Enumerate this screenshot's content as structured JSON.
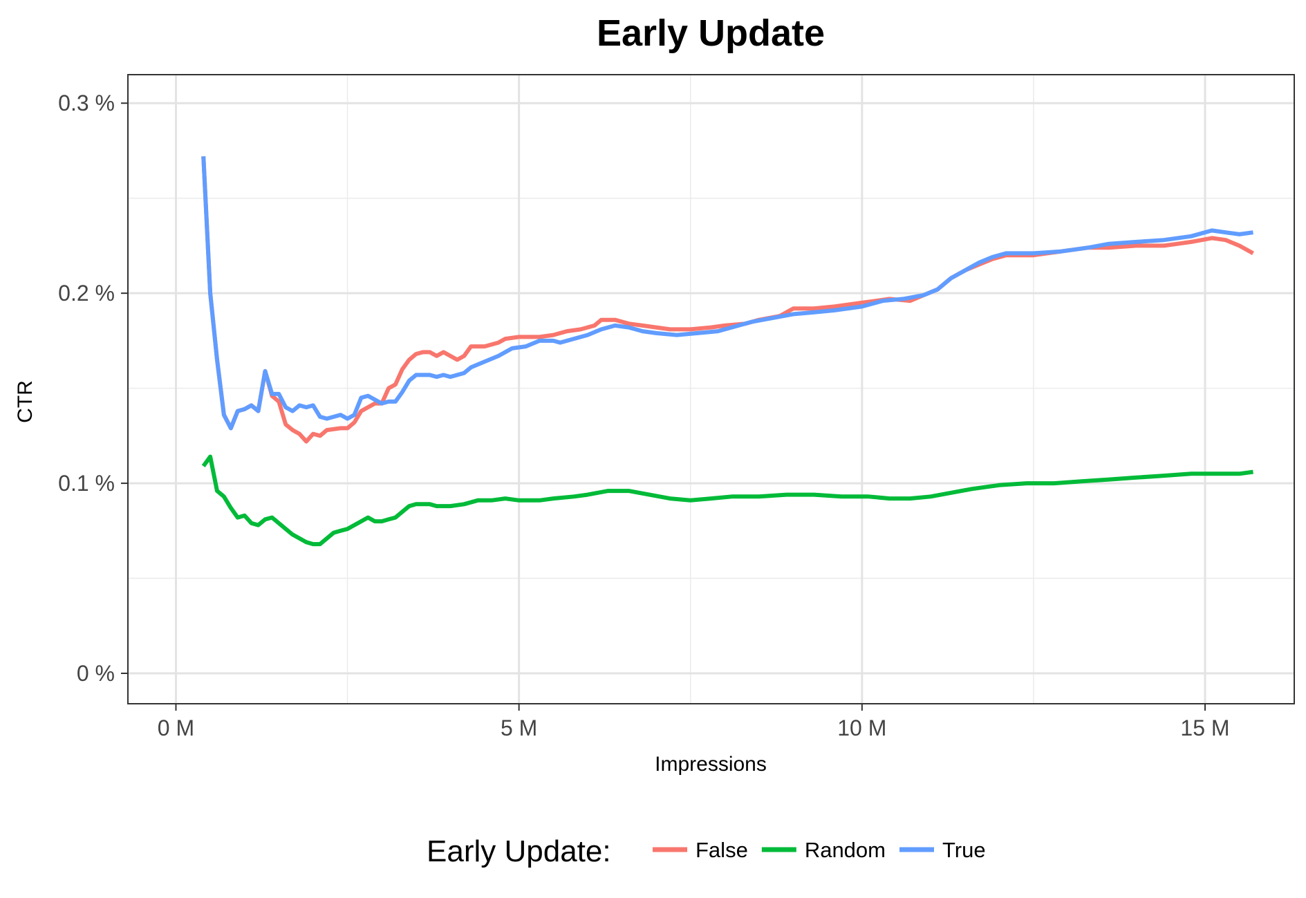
{
  "chart_data": {
    "type": "line",
    "title": "Early Update",
    "xlabel": "Impressions",
    "ylabel": "CTR",
    "xlim": [
      -0.7,
      16.3
    ],
    "ylim": [
      -0.016,
      0.315
    ],
    "x_ticks": [
      0,
      5,
      10,
      15
    ],
    "x_tick_labels": [
      "0 M",
      "5 M",
      "10 M",
      "15 M"
    ],
    "y_ticks": [
      0,
      0.1,
      0.2,
      0.3
    ],
    "y_tick_labels": [
      "0 %",
      "0.1 %",
      "0.2 %",
      "0.3 %"
    ],
    "grid": true,
    "legend": {
      "title": "Early Update:",
      "placement": "bottom"
    },
    "series": [
      {
        "name": "False",
        "color": "#F8766D",
        "points": [
          [
            0.4,
            0.272
          ],
          [
            0.5,
            0.2
          ],
          [
            0.6,
            0.165
          ],
          [
            0.7,
            0.136
          ],
          [
            0.8,
            0.129
          ],
          [
            0.9,
            0.138
          ],
          [
            1.0,
            0.139
          ],
          [
            1.1,
            0.141
          ],
          [
            1.2,
            0.138
          ],
          [
            1.3,
            0.159
          ],
          [
            1.4,
            0.146
          ],
          [
            1.5,
            0.143
          ],
          [
            1.6,
            0.131
          ],
          [
            1.7,
            0.128
          ],
          [
            1.8,
            0.126
          ],
          [
            1.9,
            0.122
          ],
          [
            2.0,
            0.126
          ],
          [
            2.1,
            0.125
          ],
          [
            2.2,
            0.128
          ],
          [
            2.4,
            0.129
          ],
          [
            2.5,
            0.129
          ],
          [
            2.6,
            0.132
          ],
          [
            2.7,
            0.138
          ],
          [
            2.8,
            0.14
          ],
          [
            2.9,
            0.142
          ],
          [
            3.0,
            0.142
          ],
          [
            3.1,
            0.15
          ],
          [
            3.2,
            0.152
          ],
          [
            3.3,
            0.16
          ],
          [
            3.4,
            0.165
          ],
          [
            3.5,
            0.168
          ],
          [
            3.6,
            0.169
          ],
          [
            3.7,
            0.169
          ],
          [
            3.8,
            0.167
          ],
          [
            3.9,
            0.169
          ],
          [
            4.0,
            0.167
          ],
          [
            4.1,
            0.165
          ],
          [
            4.2,
            0.167
          ],
          [
            4.3,
            0.172
          ],
          [
            4.5,
            0.172
          ],
          [
            4.7,
            0.174
          ],
          [
            4.8,
            0.176
          ],
          [
            5.0,
            0.177
          ],
          [
            5.3,
            0.177
          ],
          [
            5.5,
            0.178
          ],
          [
            5.7,
            0.18
          ],
          [
            5.9,
            0.181
          ],
          [
            6.1,
            0.183
          ],
          [
            6.2,
            0.186
          ],
          [
            6.4,
            0.186
          ],
          [
            6.6,
            0.184
          ],
          [
            6.8,
            0.183
          ],
          [
            7.0,
            0.182
          ],
          [
            7.2,
            0.181
          ],
          [
            7.5,
            0.181
          ],
          [
            7.8,
            0.182
          ],
          [
            8.0,
            0.183
          ],
          [
            8.3,
            0.184
          ],
          [
            8.5,
            0.186
          ],
          [
            8.8,
            0.188
          ],
          [
            9.0,
            0.192
          ],
          [
            9.3,
            0.192
          ],
          [
            9.6,
            0.193
          ],
          [
            10.0,
            0.195
          ],
          [
            10.2,
            0.196
          ],
          [
            10.4,
            0.197
          ],
          [
            10.7,
            0.196
          ],
          [
            10.9,
            0.199
          ],
          [
            11.1,
            0.202
          ],
          [
            11.3,
            0.208
          ],
          [
            11.5,
            0.212
          ],
          [
            11.7,
            0.215
          ],
          [
            11.9,
            0.218
          ],
          [
            12.1,
            0.22
          ],
          [
            12.5,
            0.22
          ],
          [
            12.9,
            0.222
          ],
          [
            13.3,
            0.224
          ],
          [
            13.6,
            0.224
          ],
          [
            14.0,
            0.225
          ],
          [
            14.4,
            0.225
          ],
          [
            14.6,
            0.226
          ],
          [
            14.8,
            0.227
          ],
          [
            15.1,
            0.229
          ],
          [
            15.3,
            0.228
          ],
          [
            15.5,
            0.225
          ],
          [
            15.7,
            0.221
          ]
        ]
      },
      {
        "name": "Random",
        "color": "#00BA38",
        "points": [
          [
            0.4,
            0.109
          ],
          [
            0.5,
            0.114
          ],
          [
            0.6,
            0.096
          ],
          [
            0.7,
            0.093
          ],
          [
            0.8,
            0.087
          ],
          [
            0.9,
            0.082
          ],
          [
            1.0,
            0.083
          ],
          [
            1.1,
            0.079
          ],
          [
            1.2,
            0.078
          ],
          [
            1.3,
            0.081
          ],
          [
            1.4,
            0.082
          ],
          [
            1.5,
            0.079
          ],
          [
            1.6,
            0.076
          ],
          [
            1.7,
            0.073
          ],
          [
            1.8,
            0.071
          ],
          [
            1.9,
            0.069
          ],
          [
            2.0,
            0.068
          ],
          [
            2.1,
            0.068
          ],
          [
            2.2,
            0.071
          ],
          [
            2.3,
            0.074
          ],
          [
            2.4,
            0.075
          ],
          [
            2.5,
            0.076
          ],
          [
            2.6,
            0.078
          ],
          [
            2.7,
            0.08
          ],
          [
            2.8,
            0.082
          ],
          [
            2.9,
            0.08
          ],
          [
            3.0,
            0.08
          ],
          [
            3.1,
            0.081
          ],
          [
            3.2,
            0.082
          ],
          [
            3.3,
            0.085
          ],
          [
            3.4,
            0.088
          ],
          [
            3.5,
            0.089
          ],
          [
            3.6,
            0.089
          ],
          [
            3.7,
            0.089
          ],
          [
            3.8,
            0.088
          ],
          [
            4.0,
            0.088
          ],
          [
            4.2,
            0.089
          ],
          [
            4.4,
            0.091
          ],
          [
            4.6,
            0.091
          ],
          [
            4.8,
            0.092
          ],
          [
            5.0,
            0.091
          ],
          [
            5.3,
            0.091
          ],
          [
            5.5,
            0.092
          ],
          [
            5.8,
            0.093
          ],
          [
            6.0,
            0.094
          ],
          [
            6.3,
            0.096
          ],
          [
            6.6,
            0.096
          ],
          [
            6.9,
            0.094
          ],
          [
            7.2,
            0.092
          ],
          [
            7.5,
            0.091
          ],
          [
            7.8,
            0.092
          ],
          [
            8.1,
            0.093
          ],
          [
            8.5,
            0.093
          ],
          [
            8.9,
            0.094
          ],
          [
            9.3,
            0.094
          ],
          [
            9.7,
            0.093
          ],
          [
            10.1,
            0.093
          ],
          [
            10.4,
            0.092
          ],
          [
            10.7,
            0.092
          ],
          [
            11.0,
            0.093
          ],
          [
            11.3,
            0.095
          ],
          [
            11.6,
            0.097
          ],
          [
            12.0,
            0.099
          ],
          [
            12.4,
            0.1
          ],
          [
            12.8,
            0.1
          ],
          [
            13.2,
            0.101
          ],
          [
            13.6,
            0.102
          ],
          [
            14.0,
            0.103
          ],
          [
            14.4,
            0.104
          ],
          [
            14.8,
            0.105
          ],
          [
            15.2,
            0.105
          ],
          [
            15.5,
            0.105
          ],
          [
            15.7,
            0.106
          ]
        ]
      },
      {
        "name": "True",
        "color": "#619CFF",
        "points": [
          [
            0.4,
            0.272
          ],
          [
            0.5,
            0.2
          ],
          [
            0.6,
            0.165
          ],
          [
            0.7,
            0.136
          ],
          [
            0.8,
            0.129
          ],
          [
            0.9,
            0.138
          ],
          [
            1.0,
            0.139
          ],
          [
            1.1,
            0.141
          ],
          [
            1.2,
            0.138
          ],
          [
            1.3,
            0.159
          ],
          [
            1.4,
            0.147
          ],
          [
            1.5,
            0.147
          ],
          [
            1.6,
            0.14
          ],
          [
            1.7,
            0.138
          ],
          [
            1.8,
            0.141
          ],
          [
            1.9,
            0.14
          ],
          [
            2.0,
            0.141
          ],
          [
            2.1,
            0.135
          ],
          [
            2.2,
            0.134
          ],
          [
            2.3,
            0.135
          ],
          [
            2.4,
            0.136
          ],
          [
            2.5,
            0.134
          ],
          [
            2.6,
            0.136
          ],
          [
            2.7,
            0.145
          ],
          [
            2.8,
            0.146
          ],
          [
            2.9,
            0.144
          ],
          [
            3.0,
            0.142
          ],
          [
            3.1,
            0.143
          ],
          [
            3.2,
            0.143
          ],
          [
            3.3,
            0.148
          ],
          [
            3.4,
            0.154
          ],
          [
            3.5,
            0.157
          ],
          [
            3.6,
            0.157
          ],
          [
            3.7,
            0.157
          ],
          [
            3.8,
            0.156
          ],
          [
            3.9,
            0.157
          ],
          [
            4.0,
            0.156
          ],
          [
            4.1,
            0.157
          ],
          [
            4.2,
            0.158
          ],
          [
            4.3,
            0.161
          ],
          [
            4.5,
            0.164
          ],
          [
            4.7,
            0.167
          ],
          [
            4.9,
            0.171
          ],
          [
            5.1,
            0.172
          ],
          [
            5.3,
            0.175
          ],
          [
            5.5,
            0.175
          ],
          [
            5.6,
            0.174
          ],
          [
            5.8,
            0.176
          ],
          [
            6.0,
            0.178
          ],
          [
            6.2,
            0.181
          ],
          [
            6.4,
            0.183
          ],
          [
            6.6,
            0.182
          ],
          [
            6.8,
            0.18
          ],
          [
            7.0,
            0.179
          ],
          [
            7.3,
            0.178
          ],
          [
            7.6,
            0.179
          ],
          [
            7.9,
            0.18
          ],
          [
            8.1,
            0.182
          ],
          [
            8.4,
            0.185
          ],
          [
            8.7,
            0.187
          ],
          [
            9.0,
            0.189
          ],
          [
            9.3,
            0.19
          ],
          [
            9.6,
            0.191
          ],
          [
            10.0,
            0.193
          ],
          [
            10.3,
            0.196
          ],
          [
            10.6,
            0.197
          ],
          [
            10.9,
            0.199
          ],
          [
            11.1,
            0.202
          ],
          [
            11.3,
            0.208
          ],
          [
            11.5,
            0.212
          ],
          [
            11.7,
            0.216
          ],
          [
            11.9,
            0.219
          ],
          [
            12.1,
            0.221
          ],
          [
            12.5,
            0.221
          ],
          [
            12.9,
            0.222
          ],
          [
            13.3,
            0.224
          ],
          [
            13.6,
            0.226
          ],
          [
            14.0,
            0.227
          ],
          [
            14.4,
            0.228
          ],
          [
            14.8,
            0.23
          ],
          [
            15.1,
            0.233
          ],
          [
            15.3,
            0.232
          ],
          [
            15.5,
            0.231
          ],
          [
            15.7,
            0.232
          ]
        ]
      }
    ]
  }
}
